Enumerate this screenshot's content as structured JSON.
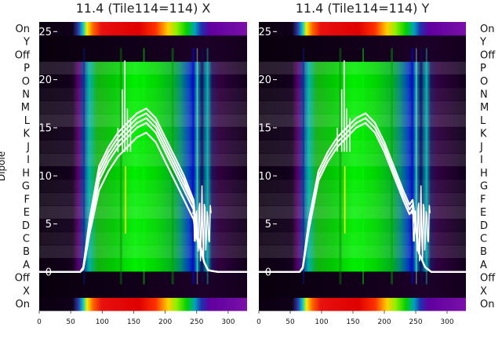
{
  "chart_data": [
    {
      "type": "heatmap",
      "title": "11.4 (Tile114=114) X",
      "xlim": [
        0,
        330
      ],
      "x_ticks": [
        0,
        50,
        100,
        150,
        200,
        250,
        300
      ],
      "ylim": [
        -4,
        26
      ],
      "y_ticks": [
        0,
        5,
        10,
        15,
        20,
        25
      ],
      "row_labels": [
        "On",
        "X",
        "Off",
        "A",
        "B",
        "C",
        "D",
        "E",
        "F",
        "G",
        "H",
        "I",
        "J",
        "K",
        "L",
        "M",
        "N",
        "O",
        "P",
        "Off",
        "Y",
        "On"
      ],
      "ylabel": "Dipole",
      "series": [
        {
          "x": [
            0,
            65,
            70,
            80,
            95,
            110,
            125,
            140,
            155,
            170,
            185,
            200,
            215,
            230,
            245,
            250,
            255,
            262,
            268,
            275,
            285,
            330
          ],
          "values": [
            0,
            0,
            0.5,
            5,
            10,
            12,
            13.5,
            14.5,
            15.5,
            16,
            15,
            13,
            11,
            9,
            7,
            4,
            3,
            1,
            0.2,
            0.1,
            0,
            0
          ]
        },
        {
          "x": [
            0,
            65,
            70,
            80,
            95,
            110,
            125,
            140,
            155,
            170,
            185,
            200,
            215,
            230,
            245,
            250,
            255,
            262,
            268,
            275,
            285,
            330
          ],
          "values": [
            0,
            0,
            0.5,
            5.5,
            11,
            13,
            14.5,
            15.5,
            16.5,
            17,
            16,
            14,
            12,
            10,
            7.5,
            4,
            3,
            1,
            0.2,
            0.1,
            0,
            0
          ]
        },
        {
          "x": [
            0,
            65,
            70,
            80,
            95,
            110,
            125,
            140,
            155,
            170,
            185,
            200,
            215,
            230,
            245,
            250,
            255,
            262,
            268,
            275,
            285,
            330
          ],
          "values": [
            0,
            0,
            0.4,
            4.5,
            9.5,
            11.5,
            13,
            14,
            15,
            15.5,
            14.5,
            12.5,
            10.5,
            8.5,
            6.5,
            4,
            3,
            1,
            0.2,
            0.1,
            0,
            0
          ]
        },
        {
          "x": [
            0,
            65,
            70,
            80,
            95,
            110,
            125,
            140,
            155,
            170,
            185,
            200,
            215,
            230,
            245,
            250,
            255,
            262,
            268,
            275,
            285,
            330
          ],
          "values": [
            0,
            0,
            0.5,
            5,
            10.5,
            12.5,
            14,
            15,
            16,
            16.5,
            15.5,
            13.5,
            11.5,
            9.5,
            7,
            4,
            3,
            1,
            0.2,
            0.1,
            0,
            0
          ]
        },
        {
          "x": [
            0,
            65,
            70,
            80,
            95,
            110,
            125,
            140,
            155,
            170,
            185,
            200,
            215,
            230,
            245,
            250,
            255,
            262,
            268,
            275,
            285,
            330
          ],
          "values": [
            0,
            0,
            0.3,
            4,
            8.5,
            10.5,
            12,
            13,
            14,
            14.5,
            13.5,
            11.5,
            9.5,
            7.5,
            5.5,
            3.5,
            2.5,
            1,
            0.2,
            0.1,
            0,
            0
          ]
        }
      ]
    },
    {
      "type": "heatmap",
      "title": "11.4 (Tile114=114) Y",
      "xlim": [
        0,
        330
      ],
      "x_ticks": [
        0,
        50,
        100,
        150,
        200,
        250,
        300
      ],
      "ylim": [
        -4,
        26
      ],
      "y_ticks": [
        0,
        5,
        10,
        15,
        20,
        25
      ],
      "row_labels": [
        "On",
        "X",
        "Off",
        "A",
        "B",
        "C",
        "D",
        "E",
        "F",
        "G",
        "H",
        "I",
        "J",
        "K",
        "L",
        "M",
        "N",
        "O",
        "P",
        "Off",
        "Y",
        "On"
      ],
      "series": [
        {
          "x": [
            0,
            65,
            70,
            80,
            95,
            110,
            125,
            140,
            155,
            170,
            185,
            200,
            215,
            230,
            240,
            245,
            250,
            255,
            265,
            275,
            330
          ],
          "values": [
            0,
            0,
            0.5,
            5,
            10,
            12,
            13.5,
            14.5,
            15.5,
            16,
            15,
            13,
            10.5,
            8,
            6.5,
            7,
            5,
            2,
            0.5,
            0,
            0
          ]
        },
        {
          "x": [
            0,
            65,
            70,
            80,
            95,
            110,
            125,
            140,
            155,
            170,
            185,
            200,
            215,
            230,
            240,
            245,
            250,
            255,
            265,
            275,
            330
          ],
          "values": [
            0,
            0,
            0.5,
            5.5,
            10.5,
            12.5,
            14,
            15,
            16,
            16.5,
            15.5,
            13.5,
            11,
            8.5,
            7,
            7.5,
            5,
            2,
            0.5,
            0,
            0
          ]
        },
        {
          "x": [
            0,
            65,
            70,
            80,
            95,
            110,
            125,
            140,
            155,
            170,
            185,
            200,
            215,
            230,
            240,
            245,
            250,
            255,
            265,
            275,
            330
          ],
          "values": [
            0,
            0,
            0.4,
            4.5,
            9.5,
            11.5,
            13,
            14,
            15,
            15.5,
            14.5,
            12.5,
            10,
            7.5,
            6,
            6.5,
            4.5,
            2,
            0.5,
            0,
            0
          ]
        }
      ]
    }
  ]
}
